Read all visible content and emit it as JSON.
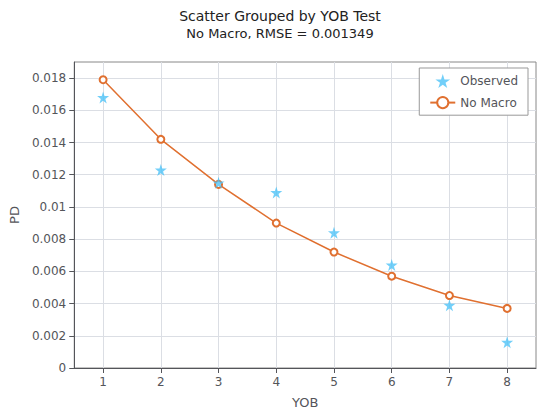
{
  "chart_data": {
    "type": "line",
    "title": "Scatter Grouped by YOB Test",
    "subtitle": "No Macro, RMSE = 0.001349",
    "x_label": "YOB",
    "y_label": "PD",
    "x": [
      1,
      2,
      3,
      4,
      5,
      6,
      7,
      8
    ],
    "series": [
      {
        "name": "No Macro",
        "type": "line",
        "color": "#E07030",
        "marker": "circle",
        "line_style": "solid",
        "values": [
          0.0179,
          0.0142,
          0.0114,
          0.009,
          0.0072,
          0.0057,
          0.0045,
          0.0037
        ]
      },
      {
        "name": "Observed",
        "type": "scatter",
        "color": "#4FC3F7",
        "marker": "star",
        "values": [
          0.0168,
          0.0123,
          0.0115,
          0.0109,
          0.0084,
          0.0064,
          0.0039,
          0.0016
        ]
      }
    ],
    "xlim": [
      0.5,
      8.5
    ],
    "xticks": [
      1,
      2,
      3,
      4,
      5,
      6,
      7,
      8
    ],
    "ylim": [
      0,
      0.019
    ],
    "yticks": [
      0,
      0.002,
      0.004,
      0.006,
      0.008,
      0.01,
      0.012,
      0.014,
      0.016,
      0.018
    ],
    "grid": true,
    "legend": "upper right"
  }
}
